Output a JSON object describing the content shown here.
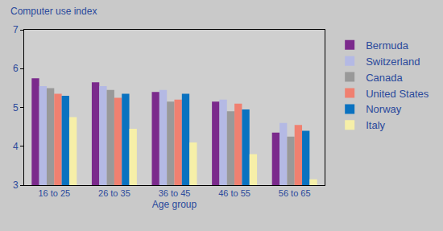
{
  "chart_data": {
    "type": "bar",
    "y_label": "Computer use index",
    "x_label": "Age group",
    "categories": [
      "16 to 25",
      "26 to 35",
      "36 to 45",
      "46 to 55",
      "56 to 65"
    ],
    "series": [
      {
        "name": "Bermuda",
        "color": "#7b2a8c",
        "values": [
          5.75,
          5.65,
          5.4,
          5.15,
          4.35
        ]
      },
      {
        "name": "Switzerland",
        "color": "#b4b9e4",
        "values": [
          5.55,
          5.55,
          5.45,
          5.2,
          4.6
        ]
      },
      {
        "name": "Canada",
        "color": "#999999",
        "values": [
          5.5,
          5.45,
          5.15,
          4.9,
          4.25
        ]
      },
      {
        "name": "United States",
        "color": "#f08070",
        "values": [
          5.35,
          5.25,
          5.2,
          5.1,
          4.55
        ]
      },
      {
        "name": "Norway",
        "color": "#0a72c0",
        "values": [
          5.3,
          5.35,
          5.35,
          4.95,
          4.4
        ]
      },
      {
        "name": "Italy",
        "color": "#f6efa8",
        "values": [
          4.75,
          4.45,
          4.1,
          3.8,
          3.15
        ]
      }
    ],
    "ylim": [
      3,
      7
    ],
    "yticks": [
      3,
      4,
      5,
      6,
      7
    ],
    "grid": false,
    "legend": "right"
  }
}
